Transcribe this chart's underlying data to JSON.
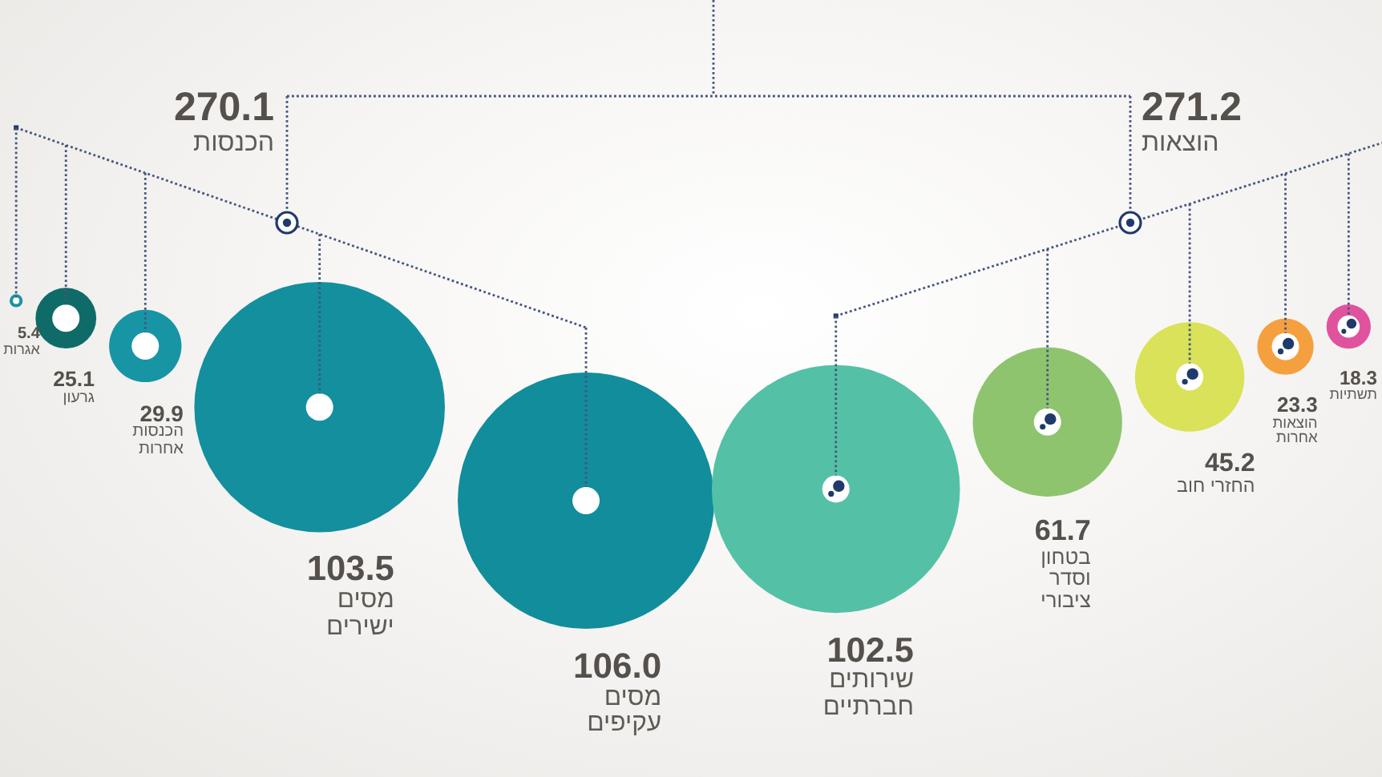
{
  "chart_data": {
    "type": "other",
    "categories": [
      "אגרות",
      "גרעון",
      "הכנסות אחרות",
      "מסים ישירים",
      "מסים עקיפים",
      "שירותים חברתיים",
      "בטחון וסדר ציבורי",
      "החזרי חוב",
      "הוצאות אחרות",
      "תשתיות"
    ],
    "series": [
      {
        "name": "הכנסות",
        "values": [
          5.4,
          25.1,
          29.9,
          103.5,
          106.0,
          null,
          null,
          null,
          null,
          null
        ],
        "value_labels": [
          "5.4",
          "25.1",
          "29.9",
          "103.5",
          "106.0",
          null,
          null,
          null,
          null,
          null
        ],
        "colors": [
          "#1a93a3",
          "#0f6b67",
          "#1795a4",
          "#138f9e",
          "#118d9b",
          null,
          null,
          null,
          null,
          null
        ]
      },
      {
        "name": "הוצאות",
        "values": [
          null,
          null,
          null,
          null,
          null,
          102.5,
          61.7,
          45.2,
          23.3,
          18.3
        ],
        "value_labels": [
          null,
          null,
          null,
          null,
          null,
          "102.5",
          "61.7",
          "45.2",
          "23.3",
          "18.3"
        ],
        "colors": [
          null,
          null,
          null,
          null,
          null,
          "#54c1a6",
          "#8ec46e",
          "#d9e259",
          "#f5a03f",
          "#e0529e"
        ]
      }
    ],
    "annotations": [
      "270.1",
      "271.2"
    ]
  }
}
